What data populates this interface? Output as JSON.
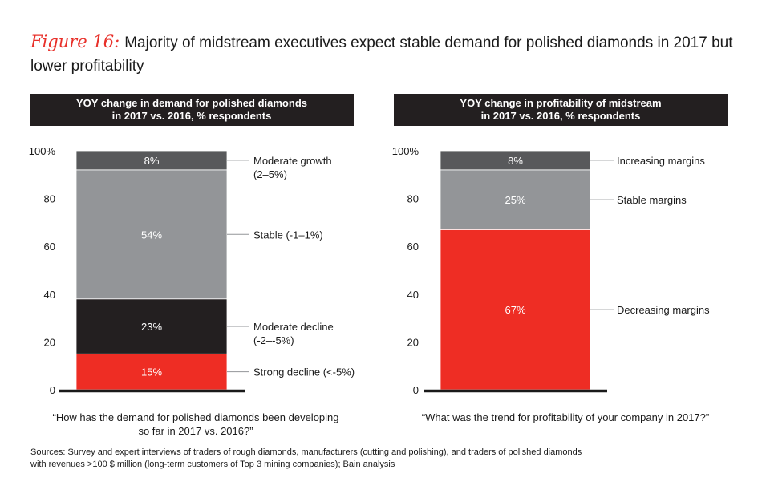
{
  "title": {
    "figure_label": "Figure 16:",
    "text": "Majority of midstream executives expect stable demand for polished diamonds in 2017 but lower profitability"
  },
  "colors": {
    "red": "#ee2d24",
    "black": "#231f20",
    "gray": "#939598",
    "dark_gray": "#58595b",
    "header_bg": "#231f20",
    "leader_line": "#939598",
    "axis": "#1a1a1a"
  },
  "chart_data": [
    {
      "type": "bar",
      "stacked": true,
      "title": "YOY change in demand for polished diamonds in 2017 vs. 2016, % respondents",
      "header_lines": [
        "YOY change in demand for polished diamonds",
        "in 2017 vs. 2016, % respondents"
      ],
      "ylim": [
        0,
        100
      ],
      "yticks": [
        0,
        20,
        40,
        60,
        80,
        100
      ],
      "ytick_labels": [
        "0",
        "20",
        "40",
        "60",
        "80",
        "100%"
      ],
      "series": [
        {
          "name": "Strong decline (<-5%)",
          "label_lines": [
            "Strong decline (<-5%)"
          ],
          "value": 15,
          "data_label": "15%",
          "color": "#ee2d24"
        },
        {
          "name": "Moderate decline (-2–-5%)",
          "label_lines": [
            "Moderate decline",
            "(-2–-5%)"
          ],
          "value": 23,
          "data_label": "23%",
          "color": "#231f20"
        },
        {
          "name": "Stable (-1–1%)",
          "label_lines": [
            "Stable (-1–1%)"
          ],
          "value": 54,
          "data_label": "54%",
          "color": "#939598"
        },
        {
          "name": "Moderate growth (2–5%)",
          "label_lines": [
            "Moderate growth",
            "(2–5%)"
          ],
          "value": 8,
          "data_label": "8%",
          "color": "#58595b"
        }
      ],
      "question_lines": [
        "“How has the demand for polished diamonds been developing",
        "so far in 2017 vs. 2016?”"
      ],
      "grid": false,
      "legend": "right"
    },
    {
      "type": "bar",
      "stacked": true,
      "title": "YOY change in profitability of midstream in 2017 vs. 2016, % respondents",
      "header_lines": [
        "YOY change in profitability of midstream",
        "in 2017 vs. 2016, % respondents"
      ],
      "ylim": [
        0,
        100
      ],
      "yticks": [
        0,
        20,
        40,
        60,
        80,
        100
      ],
      "ytick_labels": [
        "0",
        "20",
        "40",
        "60",
        "80",
        "100%"
      ],
      "series": [
        {
          "name": "Decreasing margins",
          "label_lines": [
            "Decreasing margins"
          ],
          "value": 67,
          "data_label": "67%",
          "color": "#ee2d24"
        },
        {
          "name": "Stable margins",
          "label_lines": [
            "Stable margins"
          ],
          "value": 25,
          "data_label": "25%",
          "color": "#939598"
        },
        {
          "name": "Increasing margins",
          "label_lines": [
            "Increasing margins"
          ],
          "value": 8,
          "data_label": "8%",
          "color": "#58595b"
        }
      ],
      "question_lines": [
        "“What was the trend for profitability of your company in 2017?”"
      ],
      "grid": false,
      "legend": "right"
    }
  ],
  "source": {
    "lines": [
      "Sources: Survey and expert interviews of traders of rough diamonds, manufacturers (cutting and polishing), and traders of polished diamonds",
      "with revenues >100 $ million (long-term customers of Top 3 mining companies); Bain analysis"
    ]
  }
}
